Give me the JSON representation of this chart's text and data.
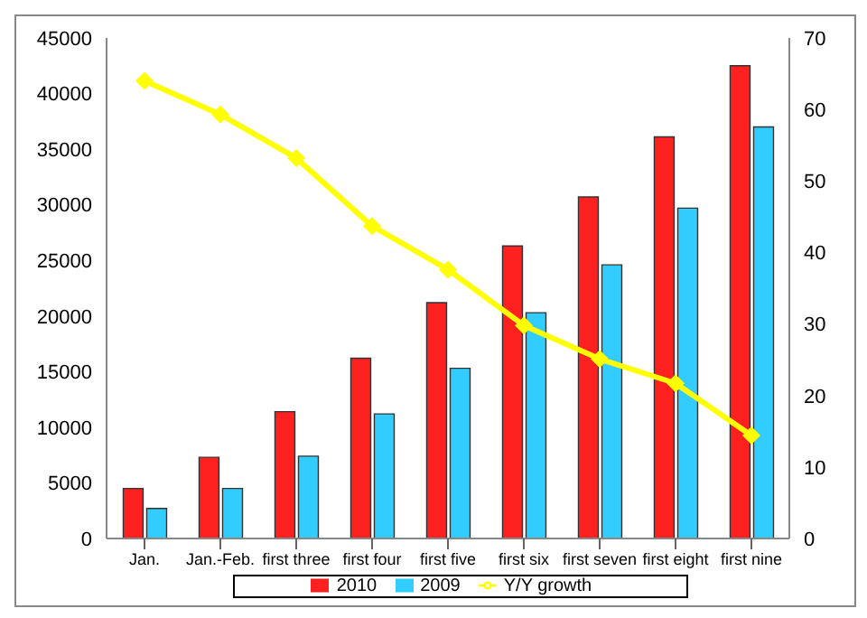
{
  "chart_data": {
    "type": "bar",
    "categories": [
      "Jan.",
      "Jan.-Feb.",
      "first three",
      "first four",
      "first five",
      "first six",
      "first seven",
      "first eight",
      "first nine"
    ],
    "series": [
      {
        "name": "2010",
        "color": "#ff2020",
        "values": [
          4500,
          7300,
          11400,
          16200,
          21200,
          26300,
          30700,
          36100,
          42500
        ]
      },
      {
        "name": "2009",
        "color": "#33ccff",
        "values": [
          2700,
          4500,
          7400,
          11200,
          15300,
          20300,
          24600,
          29700,
          37000
        ]
      },
      {
        "name": "Y/Y growth",
        "type": "line",
        "axis": "y2",
        "color": "#ffff00",
        "marker": "diamond",
        "values": [
          64,
          59.3,
          53.2,
          43.7,
          37.6,
          29.8,
          25.1,
          21.7,
          14.4
        ]
      }
    ],
    "ylim": [
      0,
      45000
    ],
    "yticks": [
      0,
      5000,
      10000,
      15000,
      20000,
      25000,
      30000,
      35000,
      40000,
      45000
    ],
    "y2lim": [
      0,
      70
    ],
    "y2ticks": [
      0,
      10,
      20,
      30,
      40,
      50,
      60,
      70
    ],
    "legend": "bottom"
  }
}
